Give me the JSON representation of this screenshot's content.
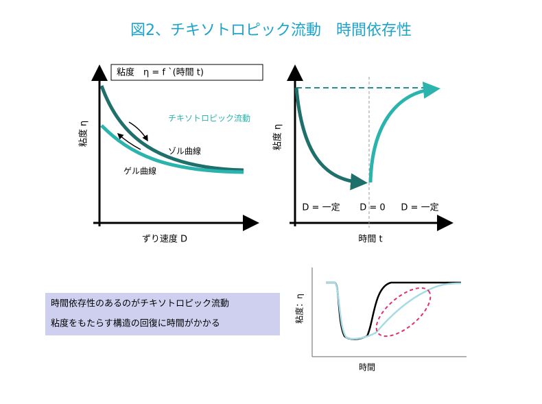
{
  "title": "図2、チキソトロピック流動　時間依存性",
  "left_chart": {
    "formula": "粘度　η = f `(時間 t)",
    "y_label": "粘度 η",
    "x_label": "ずり速度 D",
    "thixotropic_label": "チキソトロピック流動",
    "sol_label": "ゾル曲線",
    "gel_label": "ゲル曲線"
  },
  "right_chart": {
    "y_label": "粘度 η",
    "x_label": "時間 t",
    "phases": [
      "D = 一定",
      "D = 0",
      "D = 一定"
    ]
  },
  "note": {
    "lines": [
      "時間依存性のあるのがチキソトロピック流動",
      "粘度をもたらす構造の回復に時間がかかる"
    ]
  },
  "small_chart": {
    "y_label": "粘度：η",
    "x_label": "時間"
  }
}
